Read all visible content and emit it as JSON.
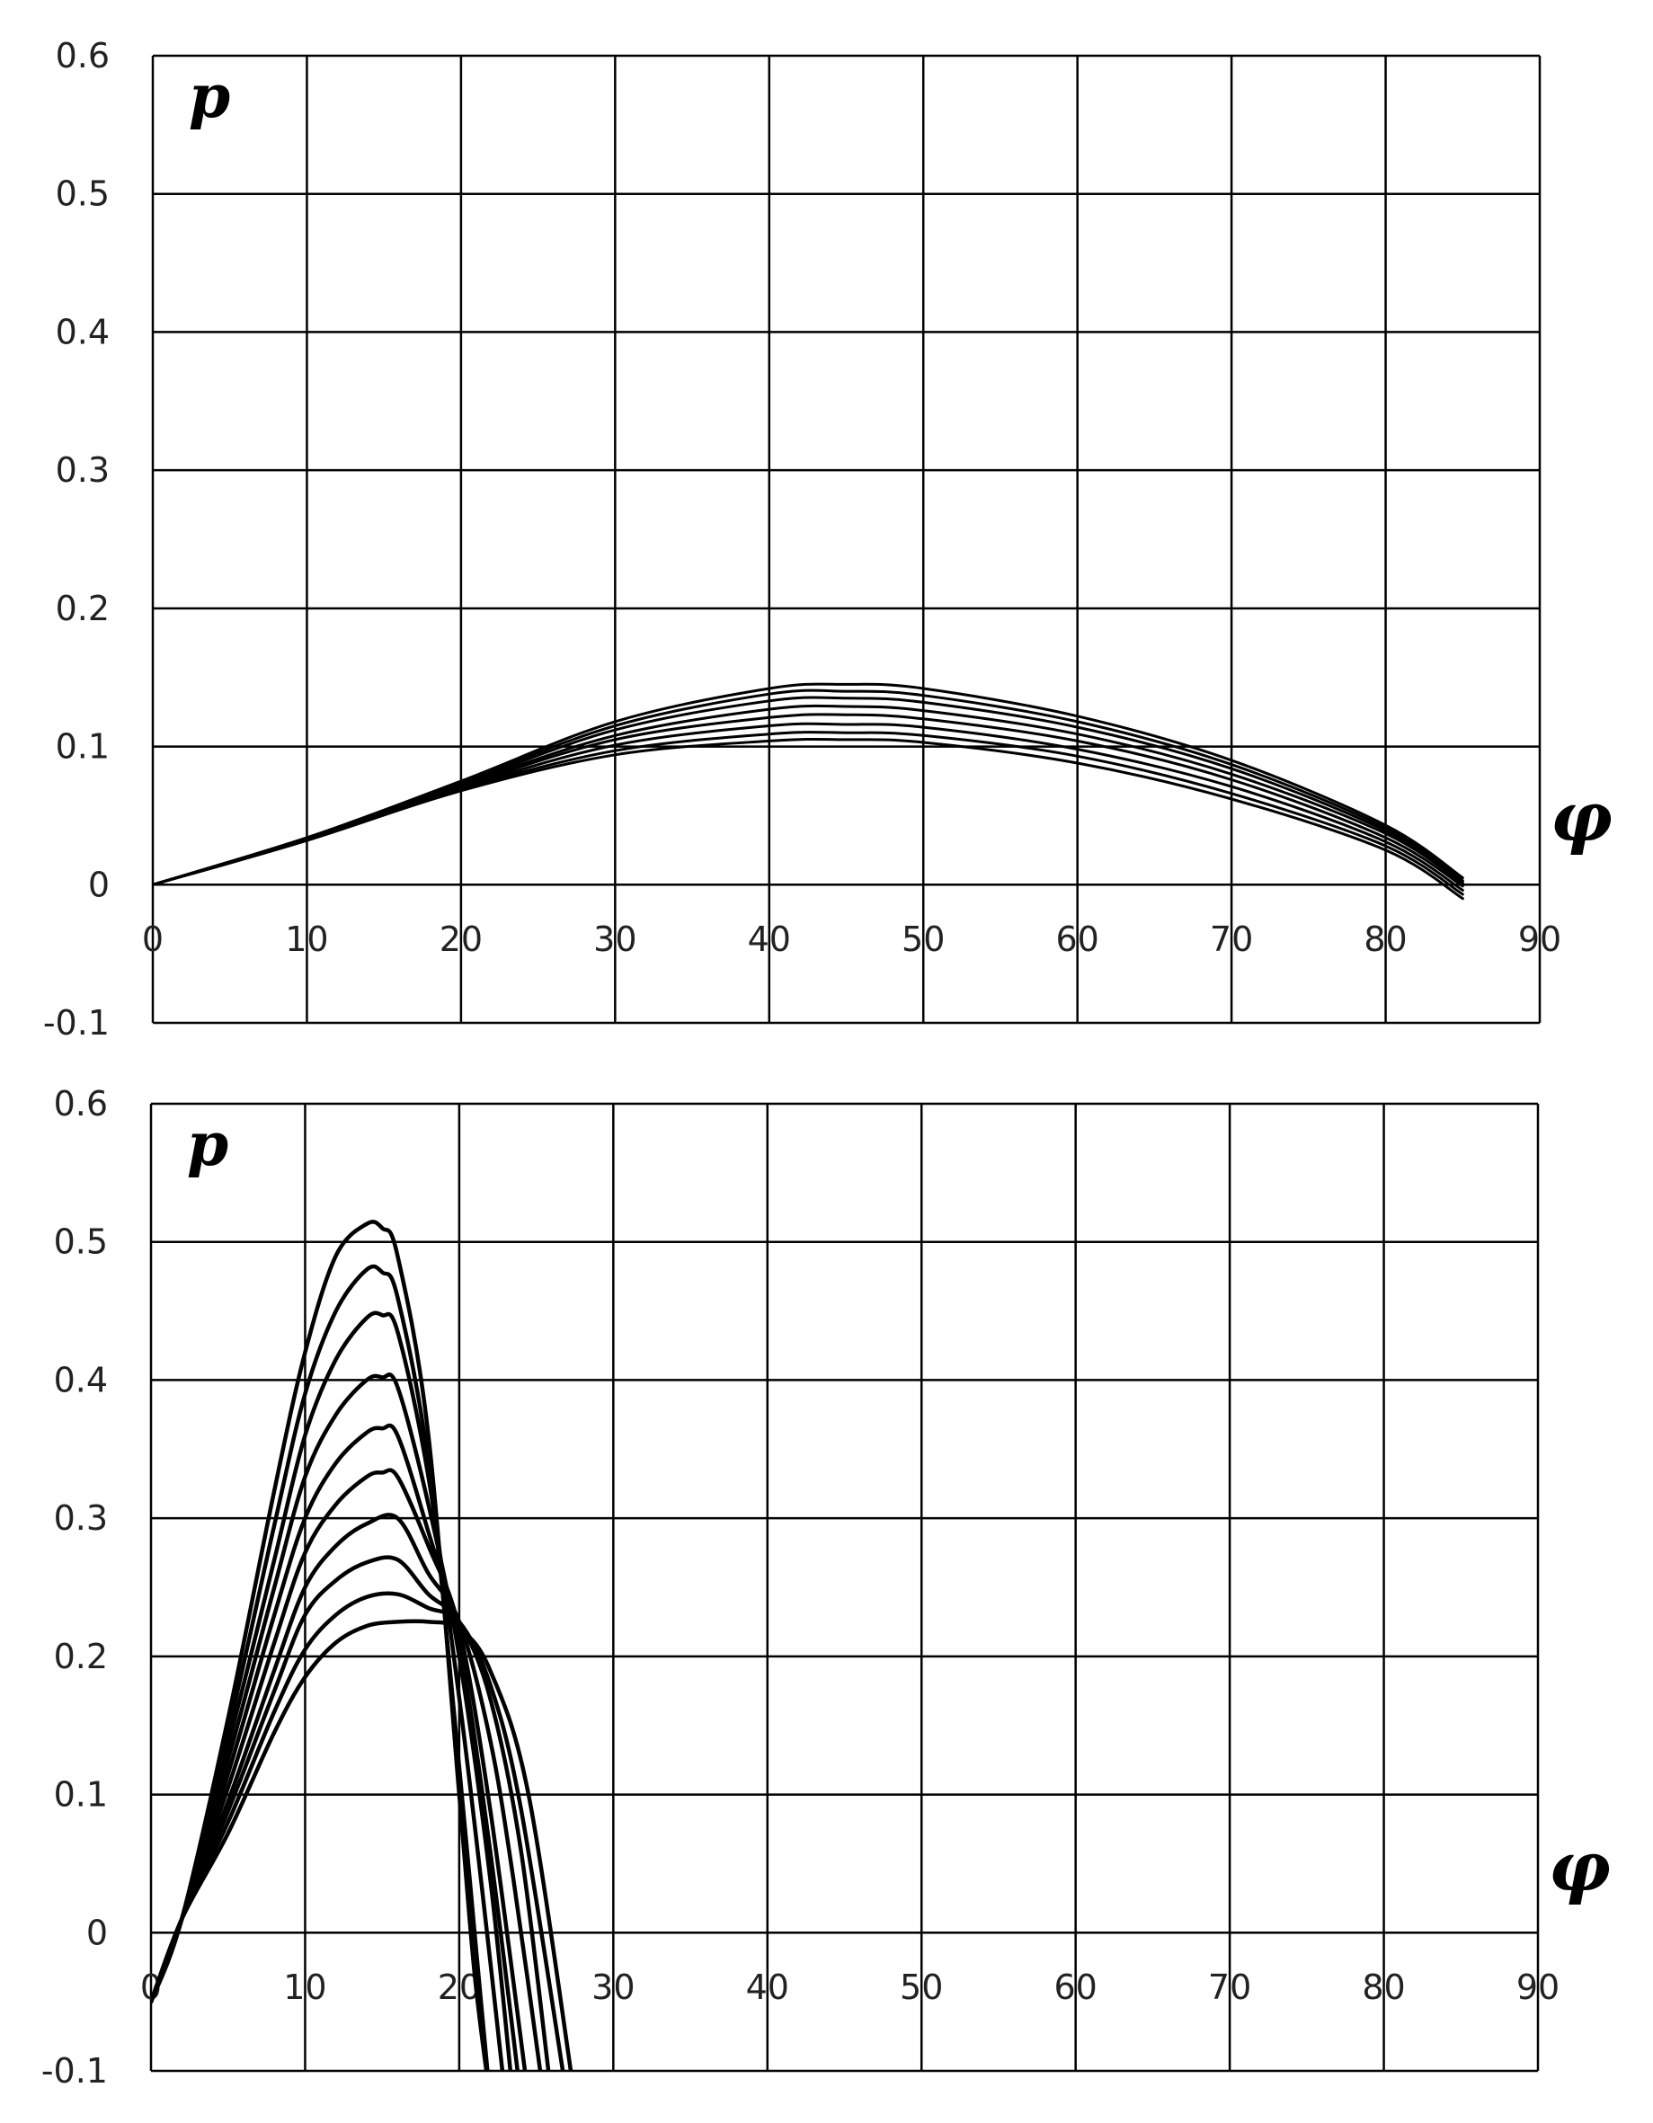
{
  "chart_data": [
    {
      "type": "line",
      "panel": "top",
      "xlabel": "φ",
      "ylabel": "p",
      "xlim": [
        0,
        90
      ],
      "ylim": [
        -0.1,
        0.6
      ],
      "x_ticks": [
        "0",
        "10",
        "20",
        "30",
        "40",
        "50",
        "60",
        "70",
        "80",
        "90"
      ],
      "y_ticks": [
        "0.6",
        "0.5",
        "0.4",
        "0.3",
        "0.2",
        "0.1",
        "0",
        "-0.1"
      ],
      "grid": true,
      "line_color": "#000000",
      "series": [
        {
          "x": [
            0,
            10,
            20,
            30,
            40,
            45,
            50,
            60,
            70,
            80,
            85
          ],
          "y": [
            0,
            0.032,
            0.068,
            0.094,
            0.104,
            0.105,
            0.103,
            0.088,
            0.062,
            0.025,
            -0.01
          ]
        },
        {
          "x": [
            0,
            10,
            20,
            30,
            40,
            45,
            50,
            60,
            70,
            80,
            85
          ],
          "y": [
            0,
            0.032,
            0.069,
            0.097,
            0.109,
            0.11,
            0.108,
            0.093,
            0.066,
            0.028,
            -0.007
          ]
        },
        {
          "x": [
            0,
            10,
            20,
            30,
            40,
            45,
            50,
            60,
            70,
            80,
            85
          ],
          "y": [
            0,
            0.033,
            0.07,
            0.101,
            0.115,
            0.116,
            0.114,
            0.098,
            0.071,
            0.031,
            -0.004
          ]
        },
        {
          "x": [
            0,
            10,
            20,
            30,
            40,
            45,
            50,
            60,
            70,
            80,
            85
          ],
          "y": [
            0,
            0.033,
            0.071,
            0.105,
            0.121,
            0.123,
            0.12,
            0.104,
            0.076,
            0.034,
            -0.001
          ]
        },
        {
          "x": [
            0,
            10,
            20,
            30,
            40,
            45,
            50,
            60,
            70,
            80,
            85
          ],
          "y": [
            0,
            0.033,
            0.072,
            0.108,
            0.127,
            0.129,
            0.126,
            0.109,
            0.08,
            0.037,
            0.001
          ]
        },
        {
          "x": [
            0,
            10,
            20,
            30,
            40,
            45,
            50,
            60,
            70,
            80,
            85
          ],
          "y": [
            0,
            0.034,
            0.073,
            0.112,
            0.133,
            0.135,
            0.132,
            0.114,
            0.084,
            0.039,
            0.002
          ]
        },
        {
          "x": [
            0,
            10,
            20,
            30,
            40,
            45,
            50,
            60,
            70,
            80,
            85
          ],
          "y": [
            0,
            0.034,
            0.074,
            0.115,
            0.138,
            0.14,
            0.137,
            0.118,
            0.087,
            0.041,
            0.003
          ]
        },
        {
          "x": [
            0,
            10,
            20,
            30,
            40,
            45,
            50,
            60,
            70,
            80,
            85
          ],
          "y": [
            0,
            0.034,
            0.075,
            0.118,
            0.142,
            0.145,
            0.142,
            0.122,
            0.09,
            0.043,
            0.005
          ]
        }
      ]
    },
    {
      "type": "line",
      "panel": "bottom",
      "xlabel": "φ",
      "ylabel": "p",
      "xlim": [
        0,
        90
      ],
      "ylim": [
        -0.1,
        0.6
      ],
      "x_ticks": [
        "0",
        "10",
        "20",
        "30",
        "40",
        "50",
        "60",
        "70",
        "80",
        "90"
      ],
      "y_ticks": [
        "0.6",
        "0.5",
        "0.4",
        "0.3",
        "0.2",
        "0.1",
        "0",
        "-0.1"
      ],
      "grid": true,
      "line_color": "#000000",
      "series": [
        {
          "x": [
            0,
            2,
            5,
            8,
            10,
            12,
            14,
            15,
            16,
            18,
            20,
            21,
            22
          ],
          "y": [
            -0.05,
            0.01,
            0.155,
            0.32,
            0.42,
            0.49,
            0.513,
            0.51,
            0.49,
            0.36,
            0.1,
            -0.03,
            -0.12
          ]
        },
        {
          "x": [
            0,
            2,
            5,
            8,
            10,
            12,
            14,
            15,
            16,
            18,
            20,
            21,
            22
          ],
          "y": [
            -0.05,
            0.01,
            0.145,
            0.295,
            0.39,
            0.45,
            0.48,
            0.478,
            0.46,
            0.34,
            0.12,
            0.0,
            -0.12
          ]
        },
        {
          "x": [
            0,
            2,
            5,
            8,
            10,
            12,
            14,
            15,
            16,
            18,
            20,
            21.5,
            23
          ],
          "y": [
            -0.05,
            0.01,
            0.135,
            0.27,
            0.36,
            0.415,
            0.445,
            0.447,
            0.435,
            0.33,
            0.17,
            0.03,
            -0.12
          ]
        },
        {
          "x": [
            0,
            2,
            5,
            8,
            10,
            12,
            14,
            15,
            16,
            18,
            20,
            22,
            23.5
          ],
          "y": [
            -0.05,
            0.01,
            0.125,
            0.25,
            0.33,
            0.375,
            0.4,
            0.402,
            0.395,
            0.31,
            0.2,
            0.04,
            -0.12
          ]
        },
        {
          "x": [
            0,
            2,
            5,
            8,
            10,
            12,
            14,
            15,
            16,
            18,
            20,
            22,
            24
          ],
          "y": [
            -0.05,
            0.01,
            0.115,
            0.23,
            0.3,
            0.34,
            0.362,
            0.365,
            0.36,
            0.29,
            0.21,
            0.06,
            -0.12
          ]
        },
        {
          "x": [
            0,
            2,
            5,
            8,
            10,
            12,
            14,
            15,
            16,
            18,
            20,
            22,
            24.5
          ],
          "y": [
            -0.05,
            0.01,
            0.105,
            0.21,
            0.275,
            0.31,
            0.33,
            0.333,
            0.33,
            0.28,
            0.22,
            0.09,
            -0.12
          ]
        },
        {
          "x": [
            0,
            2,
            5,
            8,
            10,
            12,
            14,
            16,
            18,
            20,
            22,
            23.5,
            25.5
          ],
          "y": [
            -0.05,
            0.01,
            0.095,
            0.19,
            0.25,
            0.28,
            0.296,
            0.3,
            0.26,
            0.225,
            0.14,
            0.04,
            -0.12
          ]
        },
        {
          "x": [
            0,
            2,
            5,
            8,
            10,
            12,
            14,
            16,
            18,
            20,
            22,
            24,
            26
          ],
          "y": [
            -0.05,
            0.01,
            0.088,
            0.175,
            0.23,
            0.255,
            0.268,
            0.27,
            0.245,
            0.225,
            0.17,
            0.06,
            -0.12
          ]
        },
        {
          "x": [
            0,
            2,
            5,
            8,
            10,
            12,
            14,
            16,
            18,
            20,
            22,
            24,
            27
          ],
          "y": [
            -0.05,
            0.01,
            0.08,
            0.16,
            0.205,
            0.23,
            0.243,
            0.245,
            0.235,
            0.225,
            0.18,
            0.09,
            -0.12
          ]
        },
        {
          "x": [
            0,
            2,
            5,
            8,
            10,
            12,
            14,
            16,
            18,
            20,
            22,
            24.5,
            27.5
          ],
          "y": [
            -0.05,
            0.01,
            0.072,
            0.145,
            0.185,
            0.21,
            0.222,
            0.225,
            0.225,
            0.22,
            0.19,
            0.1,
            -0.12
          ]
        }
      ]
    }
  ]
}
